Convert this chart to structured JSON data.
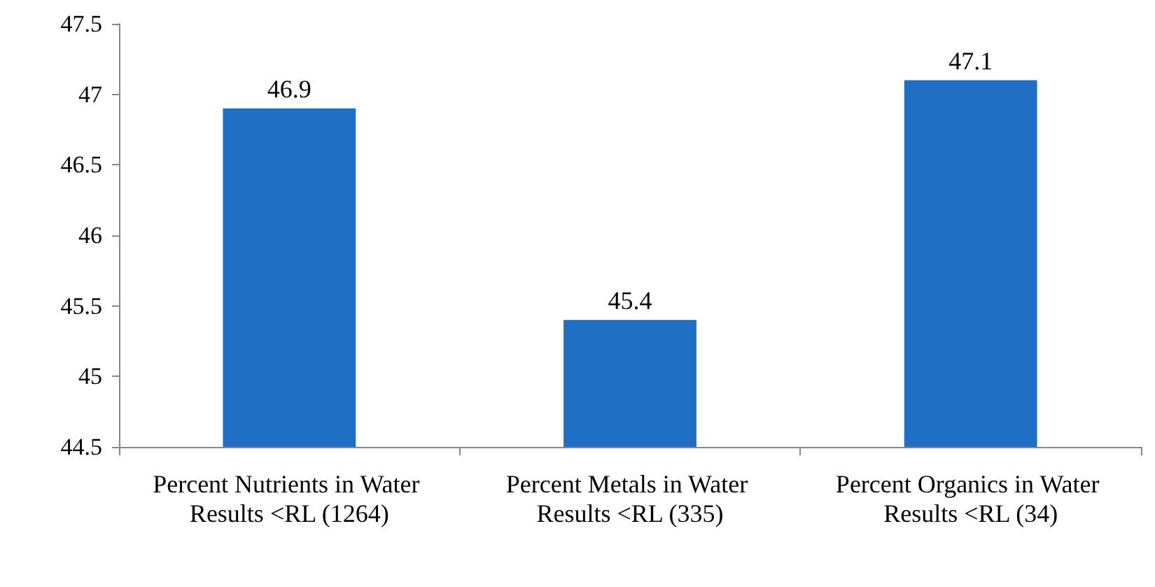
{
  "chart_data": {
    "type": "bar",
    "categories": [
      "Percent Nutrients in Water Results <RL (1264)",
      "Percent Metals in Water Results <RL (335)",
      "Percent Organics in Water Results <RL (34)"
    ],
    "values": [
      46.9,
      45.4,
      47.1
    ],
    "color": "#1f6fc5",
    "ylim": [
      44.5,
      47.5
    ],
    "yticks": [
      44.5,
      45,
      45.5,
      46,
      46.5,
      47,
      47.5
    ],
    "data_labels": true,
    "grid": false
  }
}
